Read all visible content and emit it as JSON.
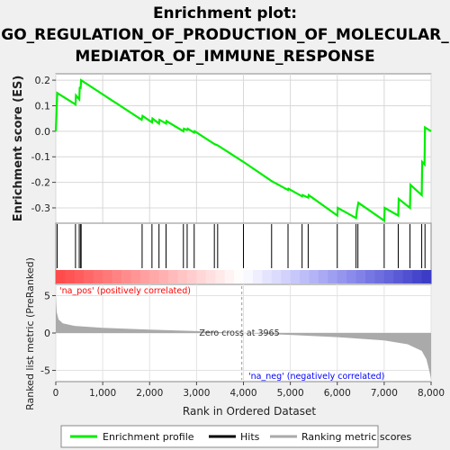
{
  "title_lines": [
    "Enrichment plot:",
    "GO_REGULATION_OF_PRODUCTION_OF_MOLECULAR_",
    "MEDIATOR_OF_IMMUNE_RESPONSE"
  ],
  "colors": {
    "enrichment_line": "#00ee00",
    "hits": "#000000",
    "ranking_fill": "#aaaaaa",
    "pos_label": "#ff0000",
    "neg_label": "#0000ff",
    "background": "#f0f0f0"
  },
  "chart_data": [
    {
      "type": "line",
      "name": "enrichment-score-panel",
      "ylabel": "Enrichment score (ES)",
      "ylim": [
        -0.36,
        0.225
      ],
      "xlim": [
        0,
        8000
      ],
      "yticks": [
        0.2,
        0.1,
        0.0,
        -0.1,
        -0.2,
        -0.3
      ],
      "ytick_labels": [
        "0.2",
        "0.1",
        "0.0",
        "-0.1",
        "-0.2",
        "-0.3"
      ],
      "grid": true,
      "series": [
        {
          "name": "Enrichment profile",
          "points": [
            [
              0,
              0.0
            ],
            [
              30,
              0.15
            ],
            [
              420,
              0.105
            ],
            [
              430,
              0.14
            ],
            [
              500,
              0.125
            ],
            [
              510,
              0.17
            ],
            [
              530,
              0.17
            ],
            [
              540,
              0.2
            ],
            [
              1830,
              0.045
            ],
            [
              1850,
              0.06
            ],
            [
              2050,
              0.035
            ],
            [
              2060,
              0.05
            ],
            [
              2200,
              0.03
            ],
            [
              2210,
              0.045
            ],
            [
              2350,
              0.03
            ],
            [
              2360,
              0.04
            ],
            [
              2720,
              0.0
            ],
            [
              2730,
              0.01
            ],
            [
              2800,
              0.005
            ],
            [
              2810,
              0.01
            ],
            [
              2950,
              -0.005
            ],
            [
              2960,
              0.0
            ],
            [
              3380,
              -0.05
            ],
            [
              3450,
              -0.055
            ],
            [
              4000,
              -0.12
            ],
            [
              4600,
              -0.195
            ],
            [
              4950,
              -0.23
            ],
            [
              4960,
              -0.225
            ],
            [
              5250,
              -0.255
            ],
            [
              5260,
              -0.25
            ],
            [
              5380,
              -0.26
            ],
            [
              5390,
              -0.25
            ],
            [
              6000,
              -0.33
            ],
            [
              6010,
              -0.3
            ],
            [
              6400,
              -0.34
            ],
            [
              6420,
              -0.31
            ],
            [
              6450,
              -0.28
            ],
            [
              7000,
              -0.35
            ],
            [
              7010,
              -0.3
            ],
            [
              7300,
              -0.33
            ],
            [
              7310,
              -0.265
            ],
            [
              7550,
              -0.3
            ],
            [
              7560,
              -0.21
            ],
            [
              7800,
              -0.25
            ],
            [
              7810,
              -0.12
            ],
            [
              7860,
              -0.13
            ],
            [
              7870,
              0.015
            ],
            [
              8000,
              0.0
            ]
          ]
        }
      ]
    },
    {
      "type": "scatter",
      "name": "hits-panel",
      "series": [
        {
          "name": "Hits",
          "x": [
            30,
            420,
            500,
            530,
            540,
            1840,
            2050,
            2200,
            2350,
            2720,
            2800,
            2950,
            3380,
            3450,
            4000,
            4600,
            4950,
            5250,
            5380,
            6000,
            6400,
            6440,
            7000,
            7300,
            7550,
            7800,
            7870
          ]
        }
      ]
    },
    {
      "type": "area",
      "name": "ranked-list-panel",
      "xlabel": "Rank in Ordered Dataset",
      "ylabel": "Ranked list metric (PreRanked)",
      "xlim": [
        0,
        8000
      ],
      "ylim": [
        -6.5,
        6.5
      ],
      "xticks": [
        0,
        1000,
        2000,
        3000,
        4000,
        5000,
        6000,
        7000,
        8000
      ],
      "xtick_labels": [
        "0",
        "1,000",
        "2,000",
        "3,000",
        "4,000",
        "5,000",
        "6,000",
        "7,000",
        "8,000"
      ],
      "yticks": [
        5,
        0,
        -5
      ],
      "ytick_labels": [
        "5",
        "0",
        "-5"
      ],
      "zero_cross": 3965,
      "zero_cross_label": "Zero cross at 3965",
      "pos_label": "'na_pos' (positively correlated)",
      "neg_label": "'na_neg' (negatively correlated)",
      "series": [
        {
          "name": "Ranking metric scores",
          "points": [
            [
              0,
              5.0
            ],
            [
              20,
              2.8
            ],
            [
              60,
              1.8
            ],
            [
              150,
              1.3
            ],
            [
              400,
              0.95
            ],
            [
              1000,
              0.7
            ],
            [
              2000,
              0.45
            ],
            [
              3000,
              0.25
            ],
            [
              3965,
              0.0
            ],
            [
              5000,
              -0.25
            ],
            [
              6000,
              -0.55
            ],
            [
              7000,
              -1.0
            ],
            [
              7500,
              -1.5
            ],
            [
              7800,
              -2.4
            ],
            [
              7900,
              -3.5
            ],
            [
              7960,
              -5.0
            ],
            [
              8000,
              -6.2
            ]
          ]
        }
      ]
    }
  ],
  "legend": {
    "items": [
      {
        "label": "Enrichment profile",
        "kind": "enrichment"
      },
      {
        "label": "Hits",
        "kind": "hits"
      },
      {
        "label": "Ranking metric scores",
        "kind": "ranking"
      }
    ]
  }
}
